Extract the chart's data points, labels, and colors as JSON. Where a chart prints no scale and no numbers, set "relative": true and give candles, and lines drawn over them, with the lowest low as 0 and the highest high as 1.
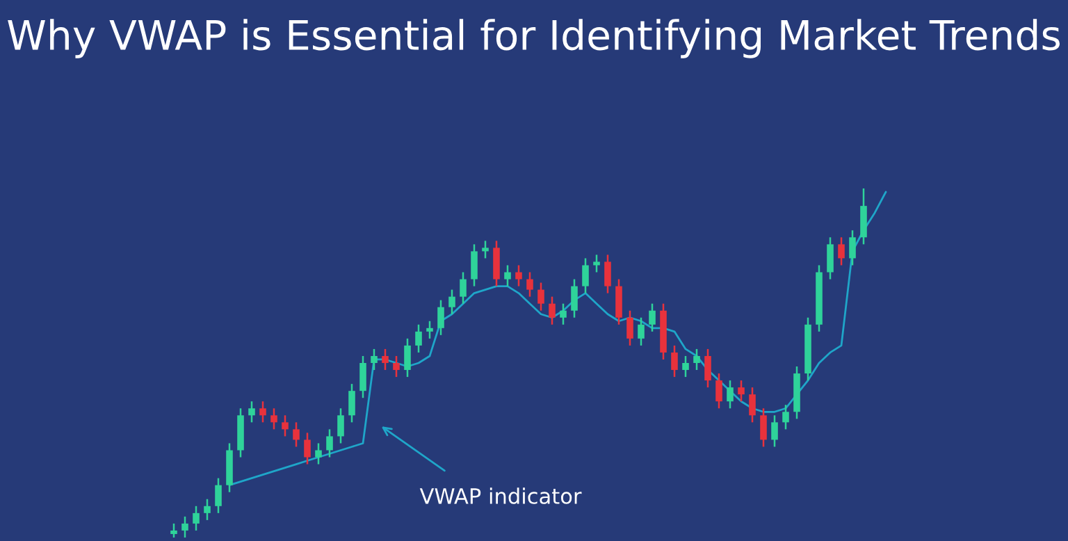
{
  "chart_data": {
    "type": "candlestick",
    "title": "Why VWAP is Essential for Identifying Market Trends",
    "relative": true,
    "categories": [
      null,
      null,
      null,
      null,
      null,
      null,
      null,
      null,
      null,
      null,
      null,
      null,
      null,
      null,
      null,
      null,
      null,
      null,
      null,
      null,
      null,
      null,
      null,
      null,
      null,
      null,
      null,
      null,
      null,
      null,
      null,
      null,
      null,
      null,
      null,
      null,
      null,
      null,
      null,
      null,
      null,
      null,
      null,
      null,
      null,
      null,
      null,
      null,
      null,
      null,
      null,
      null,
      null,
      null,
      null,
      null,
      null,
      null,
      null,
      null,
      null,
      null,
      null,
      null,
      null
    ],
    "ohlc": [
      [
        0.01,
        0.04,
        0.0,
        0.02
      ],
      [
        0.02,
        0.06,
        0.0,
        0.04
      ],
      [
        0.04,
        0.09,
        0.02,
        0.07
      ],
      [
        0.07,
        0.11,
        0.05,
        0.09
      ],
      [
        0.09,
        0.17,
        0.07,
        0.15
      ],
      [
        0.15,
        0.27,
        0.13,
        0.25
      ],
      [
        0.25,
        0.37,
        0.23,
        0.35
      ],
      [
        0.35,
        0.39,
        0.33,
        0.37
      ],
      [
        0.37,
        0.39,
        0.33,
        0.35
      ],
      [
        0.35,
        0.37,
        0.31,
        0.33
      ],
      [
        0.33,
        0.35,
        0.29,
        0.31
      ],
      [
        0.31,
        0.33,
        0.26,
        0.28
      ],
      [
        0.28,
        0.3,
        0.21,
        0.23
      ],
      [
        0.23,
        0.27,
        0.21,
        0.25
      ],
      [
        0.25,
        0.31,
        0.23,
        0.29
      ],
      [
        0.29,
        0.37,
        0.27,
        0.35
      ],
      [
        0.35,
        0.44,
        0.33,
        0.42
      ],
      [
        0.42,
        0.52,
        0.4,
        0.5
      ],
      [
        0.5,
        0.54,
        0.48,
        0.52
      ],
      [
        0.52,
        0.54,
        0.48,
        0.5
      ],
      [
        0.5,
        0.52,
        0.46,
        0.48
      ],
      [
        0.48,
        0.57,
        0.46,
        0.55
      ],
      [
        0.55,
        0.61,
        0.53,
        0.59
      ],
      [
        0.59,
        0.62,
        0.57,
        0.6
      ],
      [
        0.6,
        0.68,
        0.58,
        0.66
      ],
      [
        0.66,
        0.71,
        0.64,
        0.69
      ],
      [
        0.69,
        0.76,
        0.67,
        0.74
      ],
      [
        0.74,
        0.84,
        0.72,
        0.82
      ],
      [
        0.82,
        0.85,
        0.8,
        0.83
      ],
      [
        0.83,
        0.85,
        0.72,
        0.74
      ],
      [
        0.74,
        0.78,
        0.72,
        0.76
      ],
      [
        0.76,
        0.78,
        0.72,
        0.74
      ],
      [
        0.74,
        0.76,
        0.69,
        0.71
      ],
      [
        0.71,
        0.73,
        0.65,
        0.67
      ],
      [
        0.67,
        0.69,
        0.61,
        0.63
      ],
      [
        0.63,
        0.67,
        0.61,
        0.65
      ],
      [
        0.65,
        0.74,
        0.63,
        0.72
      ],
      [
        0.72,
        0.8,
        0.7,
        0.78
      ],
      [
        0.78,
        0.81,
        0.76,
        0.79
      ],
      [
        0.79,
        0.81,
        0.7,
        0.72
      ],
      [
        0.72,
        0.74,
        0.61,
        0.63
      ],
      [
        0.63,
        0.65,
        0.55,
        0.57
      ],
      [
        0.57,
        0.63,
        0.55,
        0.61
      ],
      [
        0.61,
        0.67,
        0.59,
        0.65
      ],
      [
        0.65,
        0.67,
        0.51,
        0.53
      ],
      [
        0.53,
        0.55,
        0.46,
        0.48
      ],
      [
        0.48,
        0.52,
        0.46,
        0.5
      ],
      [
        0.5,
        0.54,
        0.48,
        0.52
      ],
      [
        0.52,
        0.54,
        0.43,
        0.45
      ],
      [
        0.45,
        0.47,
        0.37,
        0.39
      ],
      [
        0.39,
        0.45,
        0.37,
        0.43
      ],
      [
        0.43,
        0.45,
        0.39,
        0.41
      ],
      [
        0.41,
        0.43,
        0.33,
        0.35
      ],
      [
        0.35,
        0.37,
        0.26,
        0.28
      ],
      [
        0.28,
        0.35,
        0.26,
        0.33
      ],
      [
        0.33,
        0.38,
        0.31,
        0.36
      ],
      [
        0.36,
        0.49,
        0.34,
        0.47
      ],
      [
        0.47,
        0.63,
        0.45,
        0.61
      ],
      [
        0.61,
        0.78,
        0.59,
        0.76
      ],
      [
        0.76,
        0.86,
        0.74,
        0.84
      ],
      [
        0.84,
        0.86,
        0.78,
        0.8
      ],
      [
        0.8,
        0.88,
        0.78,
        0.86
      ],
      [
        0.86,
        1.0,
        0.84,
        0.95
      ],
      null,
      null
    ],
    "series": [
      {
        "type": "line",
        "color": "#1fa6c9",
        "values": [
          null,
          null,
          null,
          null,
          null,
          0.15,
          0.16,
          0.17,
          0.18,
          0.19,
          0.2,
          0.21,
          0.22,
          0.23,
          0.24,
          0.25,
          0.26,
          0.27,
          0.51,
          0.51,
          0.5,
          0.49,
          0.5,
          0.52,
          0.62,
          0.64,
          0.67,
          0.7,
          0.71,
          0.72,
          0.72,
          0.7,
          0.67,
          0.64,
          0.63,
          0.65,
          0.68,
          0.7,
          0.67,
          0.64,
          0.62,
          0.63,
          0.62,
          0.6,
          0.6,
          0.59,
          0.54,
          0.52,
          0.48,
          0.45,
          0.42,
          0.39,
          0.37,
          0.36,
          0.36,
          0.37,
          0.41,
          0.45,
          0.5,
          0.53,
          0.55,
          0.82,
          0.88,
          0.93,
          0.99
        ]
      }
    ],
    "annotations": [
      "VWAP indicator"
    ]
  }
}
